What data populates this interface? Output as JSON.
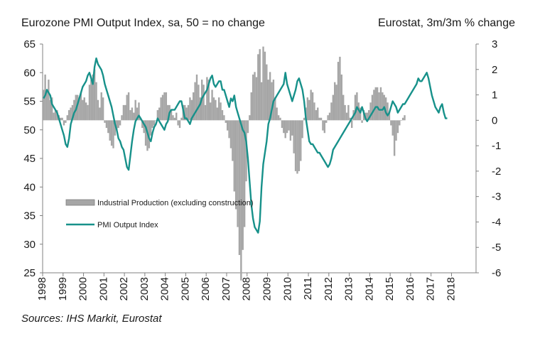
{
  "header": {
    "left_title": "Eurozone PMI Output  Index, sa, 50 = no change",
    "right_title": "Eurostat, 3m/3m  % change"
  },
  "sources": "Sources: IHS Markit, Eurostat",
  "chart_data": {
    "type": "bar+line",
    "left_axis": {
      "min": 25,
      "max": 65,
      "ticks": [
        "65",
        "60",
        "55",
        "50",
        "45",
        "40",
        "35",
        "30",
        "25"
      ]
    },
    "right_axis": {
      "min": -6,
      "max": 3,
      "ticks": [
        "3",
        "2",
        "1",
        "0",
        "-1",
        "-2",
        "-3",
        "-4",
        "-5",
        "-6"
      ]
    },
    "x_labels": [
      "1998",
      "1999",
      "2000",
      "2001",
      "2002",
      "2003",
      "2004",
      "2005",
      "2006",
      "2007",
      "2008",
      "2009",
      "2010",
      "2011",
      "2012",
      "2013",
      "2014",
      "2015",
      "2016",
      "2017",
      "2018"
    ],
    "x_start": "1998-01",
    "legend": [
      "Industrial Production (excluding construction)",
      "PMI Output Index"
    ],
    "colors": {
      "bars": "#a6a6a6",
      "line": "#17918a",
      "axis": "#808080"
    },
    "series": [
      {
        "name": "PMI Output Index",
        "axis": "left",
        "values": [
          55.5,
          56,
          57,
          56.5,
          56,
          54.5,
          54,
          53.5,
          53,
          52,
          51,
          50,
          49,
          47.5,
          47,
          48.5,
          51,
          52,
          53,
          53.5,
          54.5,
          55.5,
          56.5,
          57.5,
          58,
          58.5,
          59.5,
          60,
          59,
          58,
          61,
          62.5,
          61.5,
          61,
          60.5,
          59.5,
          58,
          57,
          56,
          55,
          54,
          52.5,
          51,
          50,
          48.5,
          48,
          47,
          46.5,
          45,
          43.5,
          43,
          45.5,
          48,
          50,
          51.5,
          52,
          52.5,
          52,
          51.5,
          51,
          50.5,
          49.5,
          48.5,
          48,
          49.5,
          50.5,
          51,
          52,
          51.5,
          51,
          50.5,
          50,
          51,
          51.5,
          53,
          53.5,
          53.5,
          53.5,
          54,
          54.5,
          55,
          55,
          53.5,
          52,
          52,
          51.5,
          51,
          52,
          52.5,
          53,
          53.5,
          54,
          54.5,
          55.5,
          56,
          56.5,
          57,
          58,
          59,
          59.5,
          58,
          57.5,
          58,
          58.5,
          58.5,
          57,
          57,
          56,
          55,
          54,
          55.5,
          55,
          56,
          54,
          53,
          52,
          51,
          50,
          49.5,
          48,
          45,
          41,
          37,
          34.5,
          33,
          32.5,
          32,
          34,
          40,
          44,
          46,
          48,
          51,
          52,
          53.5,
          55,
          55.5,
          56,
          56.5,
          57,
          57.5,
          58,
          60,
          58,
          57,
          56,
          55,
          56,
          57,
          58.5,
          59,
          58,
          57,
          55,
          52,
          50,
          48,
          47.5,
          47.5,
          47,
          46.5,
          46,
          46,
          45.5,
          45,
          44.5,
          44,
          43.5,
          44,
          45,
          46.5,
          47,
          47.5,
          48,
          48.5,
          49,
          49.5,
          50,
          50.5,
          51,
          51.5,
          52,
          52.5,
          53,
          54,
          53.5,
          53,
          54,
          53,
          52,
          51.5,
          52,
          52.5,
          53,
          53.5,
          54,
          54,
          53.5,
          53.5,
          53.5,
          54,
          53,
          52.5,
          53,
          54,
          55,
          54.5,
          54,
          53,
          53.5,
          54,
          54.5,
          54.5,
          55,
          55.5,
          56,
          56.5,
          57,
          57.5,
          58,
          59,
          58.5,
          58.5,
          59,
          59.5,
          60,
          59,
          57.5,
          56,
          55,
          54,
          53.5,
          53,
          54,
          54.5,
          53,
          52,
          52
        ],
        "labels": []
      },
      {
        "name": "Industrial Production (excluding construction)",
        "axis": "right",
        "values": [
          1.2,
          1.8,
          1.2,
          1.6,
          0.8,
          0.9,
          0.3,
          0.4,
          0.4,
          0.2,
          0.1,
          0.1,
          -0.2,
          -0.1,
          0.2,
          0.4,
          0.5,
          0.6,
          0.8,
          1.0,
          1.0,
          0.9,
          1.1,
          0.8,
          0.9,
          0.7,
          0.6,
          1.4,
          1.6,
          1.8,
          2.0,
          1.5,
          0.8,
          0.5,
          1.1,
          0.9,
          -0.1,
          -0.3,
          -0.5,
          -0.8,
          -1.0,
          -1.1,
          -0.6,
          -0.4,
          -0.3,
          -0.2,
          0.2,
          0.6,
          0.6,
          1.0,
          1.1,
          0.4,
          0.5,
          0.3,
          0.8,
          0.5,
          0.7,
          0.1,
          -0.3,
          -0.5,
          -1.0,
          -1.2,
          -1.1,
          -0.6,
          -0.3,
          -0.2,
          0.0,
          0.4,
          0.5,
          0.9,
          1.0,
          1.1,
          1.1,
          0.6,
          0.6,
          0.4,
          0.2,
          0.1,
          0.3,
          -0.2,
          -0.3,
          0.1,
          0.6,
          0.6,
          0.5,
          0.6,
          0.9,
          0.8,
          1.1,
          1.5,
          1.8,
          1.4,
          0.9,
          1.6,
          1.4,
          0.6,
          1.7,
          1.6,
          0.7,
          1.2,
          0.9,
          0.8,
          0.5,
          0.9,
          0.7,
          0.4,
          0.2,
          -0.1,
          -0.4,
          -0.7,
          -1.1,
          -1.6,
          -2.8,
          -3.5,
          -4.2,
          -5.3,
          -6.3,
          -5.1,
          -4.2,
          -2.4,
          -0.5,
          0.2,
          1.1,
          1.8,
          1.9,
          1.7,
          2.6,
          2.8,
          1.5,
          2.9,
          2.7,
          2.2,
          1.6,
          1.9,
          1.5,
          1.6,
          0.9,
          0.5,
          0.2,
          0.1,
          -0.3,
          -0.5,
          -0.7,
          -0.5,
          -0.4,
          -0.8,
          -0.6,
          -1.3,
          -2.0,
          -2.1,
          -2.0,
          -1.6,
          -0.7,
          0.1,
          0.5,
          0.9,
          0.8,
          1.2,
          1.1,
          0.7,
          0.4,
          0.5,
          0.1,
          0.1,
          -0.4,
          -0.5,
          -0.1,
          0.2,
          0.3,
          0.7,
          1.0,
          1.5,
          1.4,
          2.3,
          2.5,
          1.8,
          1.0,
          0.6,
          0.3,
          0.6,
          0.1,
          -0.3,
          0.4,
          1.0,
          1.1,
          0.7,
          0.5,
          -0.1,
          0.4,
          0.3,
          0.3,
          0.4,
          0.7,
          1.0,
          1.2,
          1.3,
          1.3,
          1.1,
          1.3,
          1.1,
          1.0,
          0.9,
          0.7,
          0.3,
          -0.2,
          -0.6,
          -1.4,
          -0.8,
          -0.5,
          -0.2,
          0.0,
          0.1,
          0.2
        ],
        "labels": []
      }
    ]
  }
}
